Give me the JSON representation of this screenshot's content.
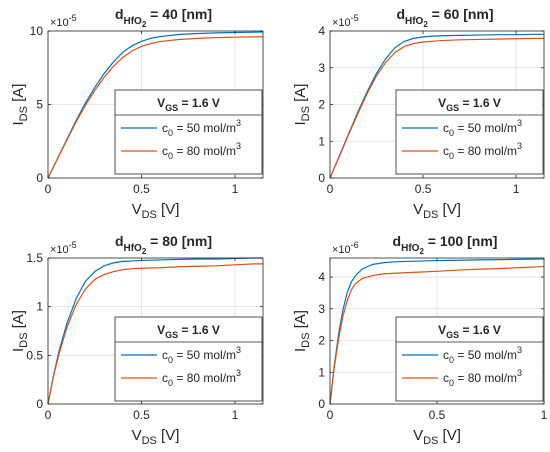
{
  "colors": {
    "series": [
      "#0072BD",
      "#D95319"
    ],
    "axis": "#262626",
    "grid": "#dfdfdf",
    "background": "#ffffff"
  },
  "chart_data": [
    {
      "type": "line",
      "title": {
        "base": "d",
        "sub": "HfO",
        "subsub": "2",
        "rest": " = 40 [nm]"
      },
      "xlabel": {
        "base": "V",
        "sub": "DS",
        "rest": " [V]"
      },
      "ylabel": {
        "base": "I",
        "sub": "DS",
        "rest": " [A]"
      },
      "xlim": [
        0,
        1.15
      ],
      "ylim": [
        0,
        10
      ],
      "xticks": [
        0,
        0.5,
        1
      ],
      "xticklabels": [
        "0",
        "0.5",
        "1"
      ],
      "yticks": [
        0,
        5,
        10
      ],
      "yticklabels": [
        "0",
        "5",
        "10"
      ],
      "yexponent": "-5",
      "grid": true,
      "legend": {
        "title_base": "V",
        "title_sub": "GS",
        "title_rest": " = 1.6 V",
        "placement": "center-right"
      },
      "series": [
        {
          "name": "c_0 = 50 mol/m^3",
          "label_base": "c",
          "label_sub": "0",
          "label_rest": " = 50 mol/m",
          "label_sup": "3",
          "x": [
            0,
            0.05,
            0.1,
            0.15,
            0.2,
            0.25,
            0.3,
            0.35,
            0.4,
            0.45,
            0.5,
            0.55,
            0.6,
            0.7,
            0.8,
            0.9,
            1.0,
            1.1,
            1.15
          ],
          "y": [
            0,
            1.3,
            2.6,
            3.9,
            5.1,
            6.15,
            7.1,
            7.9,
            8.55,
            9.0,
            9.3,
            9.5,
            9.62,
            9.76,
            9.83,
            9.87,
            9.9,
            9.92,
            9.93
          ]
        },
        {
          "name": "c_0 = 80 mol/m^3",
          "label_base": "c",
          "label_sub": "0",
          "label_rest": " = 80 mol/m",
          "label_sup": "3",
          "x": [
            0,
            0.05,
            0.1,
            0.15,
            0.2,
            0.25,
            0.3,
            0.35,
            0.4,
            0.45,
            0.5,
            0.55,
            0.6,
            0.7,
            0.8,
            0.9,
            1.0,
            1.1,
            1.15
          ],
          "y": [
            0,
            1.28,
            2.55,
            3.8,
            4.95,
            5.95,
            6.85,
            7.6,
            8.2,
            8.65,
            8.95,
            9.15,
            9.28,
            9.42,
            9.5,
            9.55,
            9.58,
            9.6,
            9.61
          ]
        }
      ]
    },
    {
      "type": "line",
      "title": {
        "base": "d",
        "sub": "HfO",
        "subsub": "2",
        "rest": " = 60 [nm]"
      },
      "xlabel": {
        "base": "V",
        "sub": "DS",
        "rest": " [V]"
      },
      "ylabel": {
        "base": "I",
        "sub": "DS",
        "rest": " [A]"
      },
      "xlim": [
        0,
        1.15
      ],
      "ylim": [
        0,
        4
      ],
      "xticks": [
        0,
        0.5,
        1
      ],
      "xticklabels": [
        "0",
        "0.5",
        "1"
      ],
      "yticks": [
        0,
        1,
        2,
        3,
        4
      ],
      "yticklabels": [
        "0",
        "1",
        "2",
        "3",
        "4"
      ],
      "yexponent": "-5",
      "grid": true,
      "legend": {
        "title_base": "V",
        "title_sub": "GS",
        "title_rest": " = 1.6 V",
        "placement": "center-right"
      },
      "series": [
        {
          "name": "c_0 = 50 mol/m^3",
          "label_base": "c",
          "label_sub": "0",
          "label_rest": " = 50 mol/m",
          "label_sup": "3",
          "x": [
            0,
            0.05,
            0.1,
            0.15,
            0.2,
            0.25,
            0.3,
            0.35,
            0.4,
            0.45,
            0.5,
            0.55,
            0.6,
            0.7,
            0.8,
            0.9,
            1.0,
            1.1,
            1.15
          ],
          "y": [
            0,
            0.6,
            1.2,
            1.8,
            2.35,
            2.85,
            3.25,
            3.55,
            3.72,
            3.8,
            3.84,
            3.86,
            3.87,
            3.88,
            3.89,
            3.9,
            3.9,
            3.91,
            3.91
          ]
        },
        {
          "name": "c_0 = 80 mol/m^3",
          "label_base": "c",
          "label_sub": "0",
          "label_rest": " = 80 mol/m",
          "label_sup": "3",
          "x": [
            0,
            0.05,
            0.1,
            0.15,
            0.2,
            0.25,
            0.3,
            0.35,
            0.4,
            0.45,
            0.5,
            0.55,
            0.6,
            0.7,
            0.8,
            0.9,
            1.0,
            1.1,
            1.15
          ],
          "y": [
            0,
            0.58,
            1.18,
            1.75,
            2.3,
            2.78,
            3.15,
            3.42,
            3.58,
            3.66,
            3.7,
            3.72,
            3.74,
            3.76,
            3.77,
            3.78,
            3.79,
            3.8,
            3.8
          ]
        }
      ]
    },
    {
      "type": "line",
      "title": {
        "base": "d",
        "sub": "HfO",
        "subsub": "2",
        "rest": " = 80 [nm]"
      },
      "xlabel": {
        "base": "V",
        "sub": "DS",
        "rest": " [V]"
      },
      "ylabel": {
        "base": "I",
        "sub": "DS",
        "rest": " [A]"
      },
      "xlim": [
        0,
        1.15
      ],
      "ylim": [
        0,
        1.5
      ],
      "xticks": [
        0,
        0.5,
        1
      ],
      "xticklabels": [
        "0",
        "0.5",
        "1"
      ],
      "yticks": [
        0,
        0.5,
        1,
        1.5
      ],
      "yticklabels": [
        "0",
        "0.5",
        "1",
        "1.5"
      ],
      "yexponent": "-5",
      "grid": true,
      "legend": {
        "title_base": "V",
        "title_sub": "GS",
        "title_rest": " = 1.6 V",
        "placement": "center-right"
      },
      "series": [
        {
          "name": "c_0 = 50 mol/m^3",
          "label_base": "c",
          "label_sub": "0",
          "label_rest": " = 50 mol/m",
          "label_sup": "3",
          "x": [
            0,
            0.03,
            0.06,
            0.1,
            0.15,
            0.2,
            0.25,
            0.3,
            0.35,
            0.4,
            0.45,
            0.5,
            0.6,
            0.7,
            0.8,
            0.9,
            1.0,
            1.1,
            1.15
          ],
          "y": [
            0,
            0.3,
            0.55,
            0.82,
            1.08,
            1.26,
            1.36,
            1.42,
            1.45,
            1.465,
            1.47,
            1.475,
            1.48,
            1.485,
            1.49,
            1.49,
            1.495,
            1.5,
            1.5
          ]
        },
        {
          "name": "c_0 = 80 mol/m^3",
          "label_base": "c",
          "label_sub": "0",
          "label_rest": " = 80 mol/m",
          "label_sup": "3",
          "x": [
            0,
            0.03,
            0.06,
            0.1,
            0.15,
            0.2,
            0.25,
            0.3,
            0.35,
            0.4,
            0.45,
            0.5,
            0.6,
            0.7,
            0.8,
            0.9,
            1.0,
            1.1,
            1.15
          ],
          "y": [
            0,
            0.29,
            0.52,
            0.78,
            1.02,
            1.18,
            1.28,
            1.33,
            1.36,
            1.38,
            1.39,
            1.395,
            1.4,
            1.41,
            1.415,
            1.42,
            1.43,
            1.44,
            1.44
          ]
        }
      ]
    },
    {
      "type": "line",
      "title": {
        "base": "d",
        "sub": "HfO",
        "subsub": "2",
        "rest": " = 100 [nm]"
      },
      "xlabel": {
        "base": "V",
        "sub": "DS",
        "rest": " [V]"
      },
      "ylabel": {
        "base": "I",
        "sub": "DS",
        "rest": " [A]"
      },
      "xlim": [
        0,
        1
      ],
      "ylim": [
        0,
        4.6
      ],
      "xticks": [
        0,
        0.5,
        1
      ],
      "xticklabels": [
        "0",
        "0.5",
        "1"
      ],
      "yticks": [
        0,
        1,
        2,
        3,
        4
      ],
      "yticklabels": [
        "0",
        "1",
        "2",
        "3",
        "4"
      ],
      "yexponent": "-6",
      "grid": true,
      "legend": {
        "title_base": "V",
        "title_sub": "GS",
        "title_rest": " = 1.6 V",
        "placement": "center-right"
      },
      "series": [
        {
          "name": "c_0 = 50 mol/m^3",
          "label_base": "c",
          "label_sub": "0",
          "label_rest": " = 50 mol/m",
          "label_sup": "3",
          "x": [
            0,
            0.02,
            0.04,
            0.06,
            0.08,
            0.1,
            0.12,
            0.15,
            0.2,
            0.25,
            0.3,
            0.4,
            0.5,
            0.6,
            0.7,
            0.8,
            0.9,
            1.0
          ],
          "y": [
            0,
            1.2,
            2.2,
            2.95,
            3.5,
            3.85,
            4.05,
            4.25,
            4.4,
            4.45,
            4.48,
            4.5,
            4.52,
            4.53,
            4.54,
            4.55,
            4.56,
            4.57
          ]
        },
        {
          "name": "c_0 = 80 mol/m^3",
          "label_base": "c",
          "label_sub": "0",
          "label_rest": " = 80 mol/m",
          "label_sup": "3",
          "x": [
            0,
            0.02,
            0.04,
            0.06,
            0.08,
            0.1,
            0.12,
            0.15,
            0.2,
            0.25,
            0.3,
            0.4,
            0.5,
            0.6,
            0.7,
            0.8,
            0.9,
            1.0
          ],
          "y": [
            0,
            1.15,
            2.05,
            2.75,
            3.25,
            3.6,
            3.8,
            3.95,
            4.05,
            4.1,
            4.12,
            4.15,
            4.18,
            4.22,
            4.25,
            4.27,
            4.3,
            4.33
          ]
        }
      ]
    }
  ]
}
